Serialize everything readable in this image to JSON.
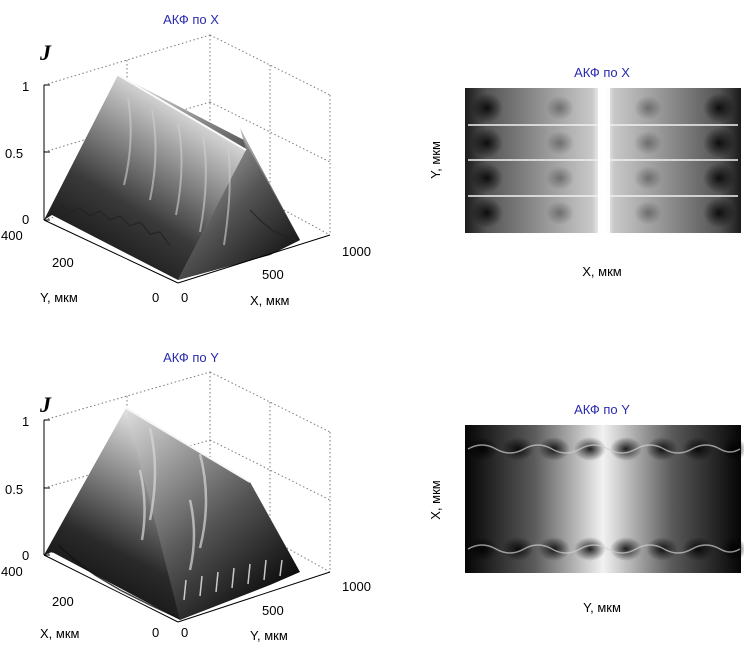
{
  "colors": {
    "title": "#2a2ab0",
    "axis": "#000000",
    "grid": "#7a7a7a"
  },
  "chart_data": [
    {
      "type": "surface",
      "title": "АКФ по X",
      "zlabel": "J",
      "xlabel": "X, мкм",
      "ylabel": "Y, мкм",
      "z_ticks": [
        "0",
        "0.5",
        "1"
      ],
      "x_ticks": [
        "0",
        "500",
        "1000"
      ],
      "y_ticks": [
        "0",
        "200",
        "400"
      ],
      "xlim": [
        0,
        1000
      ],
      "ylim": [
        0,
        400
      ],
      "zlim": [
        0,
        1
      ],
      "grid": "on",
      "colormap": "gray",
      "description_of_values": [
        {
          "x": 0,
          "y": 0,
          "z": 0
        },
        {
          "x": 500,
          "y": 0,
          "z": 1
        },
        {
          "x": 500,
          "y": 400,
          "z": 1
        },
        {
          "x": 1000,
          "y": 0,
          "z": 0.05
        }
      ]
    },
    {
      "type": "heatmap",
      "title": "АКФ по X",
      "xlabel": "X, мкм",
      "ylabel": "Y, мкм",
      "colormap": "gray"
    },
    {
      "type": "surface",
      "title": "АКФ по Y",
      "zlabel": "J",
      "xlabel": "Y, мкм",
      "ylabel": "X, мкм",
      "z_ticks": [
        "0",
        "0.5",
        "1"
      ],
      "x_ticks": [
        "0",
        "500",
        "1000"
      ],
      "y_ticks": [
        "0",
        "200",
        "400"
      ],
      "xlim": [
        0,
        1000
      ],
      "ylim": [
        0,
        400
      ],
      "zlim": [
        0,
        1
      ],
      "grid": "on",
      "colormap": "gray",
      "description_of_values": [
        {
          "x": 0,
          "y": 0,
          "z": 0
        },
        {
          "x": 500,
          "y": 0,
          "z": 1
        },
        {
          "x": 500,
          "y": 400,
          "z": 1
        },
        {
          "x": 1000,
          "y": 0,
          "z": 0.05
        }
      ]
    },
    {
      "type": "heatmap",
      "title": "АКФ по Y",
      "xlabel": "Y, мкм",
      "ylabel": "X, мкм",
      "colormap": "gray"
    }
  ]
}
